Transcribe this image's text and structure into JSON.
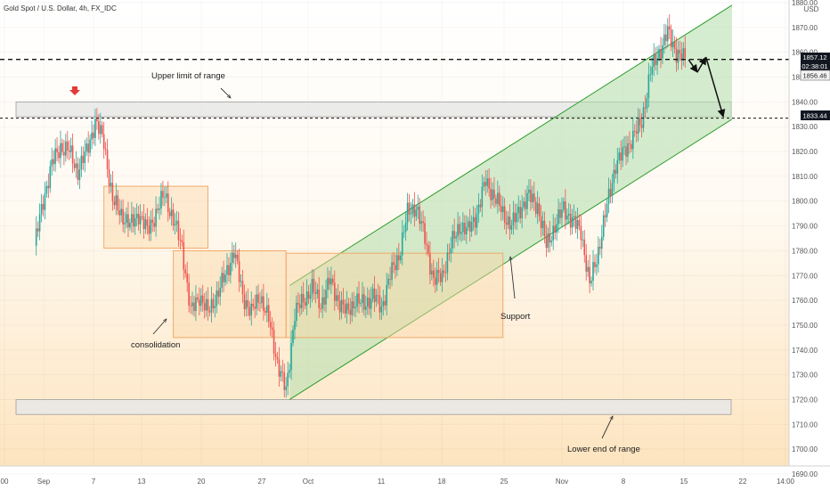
{
  "header": {
    "symbol_title": "Gold Spot / U.S. Dollar, 4h, FX_IDC",
    "currency": "USD"
  },
  "price_tags": {
    "current_price": "1857.12",
    "countdown": "02:38:01",
    "high_price": "1856.46",
    "level_price": "1833.44"
  },
  "colors": {
    "up_candle": "#26a69a",
    "down_candle": "#ef5350",
    "channel_line": "#2e9e2e",
    "channel_fill": "#b8e0b0",
    "box_orange": "#f0a35e",
    "range_gray": "#9e9e9e",
    "signal_arrow": "#e53935"
  },
  "annotations": {
    "upper_limit": "Upper limit of range",
    "consolidation": "consolidation",
    "support": "Support",
    "lower_end": "Lower end of range"
  },
  "chart_data": {
    "type": "candlestick",
    "title": "Gold Spot / U.S. Dollar, 4h, FX_IDC",
    "ylabel": "USD",
    "ylim": [
      1690,
      1880
    ],
    "y_ticks": [
      "1880.00",
      "1870.00",
      "1860.00",
      "1850.00",
      "1840.00",
      "1830.00",
      "1820.00",
      "1810.00",
      "1800.00",
      "1790.00",
      "1780.00",
      "1770.00",
      "1760.00",
      "1750.00",
      "1740.00",
      "1730.00",
      "1720.00",
      "1710.00",
      "1700.00",
      "1690.00"
    ],
    "x_ticks": [
      "00",
      "Sep",
      "7",
      "13",
      "20",
      "27",
      "Oct",
      "11",
      "18",
      "25",
      "Nov",
      "8",
      "15",
      "22",
      "14:00"
    ],
    "levels": {
      "upper_dashed": 1857.12,
      "lower_dashed": 1833.44
    },
    "upper_range_zone": [
      1834,
      1840
    ],
    "lower_range_zone": [
      1714,
      1720
    ],
    "channel": {
      "lower": [
        [
          "Sep 29",
          1720
        ],
        [
          "Nov 19",
          1833
        ]
      ],
      "upper": [
        [
          "Sep 29",
          1766
        ],
        [
          "Nov 19",
          1879
        ]
      ]
    },
    "consolidation_boxes": [
      {
        "from": "Sep 8",
        "to": "Sep 20",
        "low": 1781,
        "high": 1806
      },
      {
        "from": "Sep 16",
        "to": "Sep 29",
        "low": 1745,
        "high": 1780
      },
      {
        "from": "Sep 29",
        "to": "Oct 24",
        "low": 1745,
        "high": 1779
      }
    ],
    "close_path": [
      [
        "Aug 31",
        1782
      ],
      [
        "Sep 1",
        1800
      ],
      [
        "Sep 2",
        1815
      ],
      [
        "Sep 3",
        1822
      ],
      [
        "Sep 4",
        1820
      ],
      [
        "Sep 5",
        1812
      ],
      [
        "Sep 6",
        1820
      ],
      [
        "Sep 7",
        1832
      ],
      [
        "Sep 8",
        1824
      ],
      [
        "Sep 9",
        1800
      ],
      [
        "Sep 10",
        1795
      ],
      [
        "Sep 11",
        1790
      ],
      [
        "Sep 12",
        1795
      ],
      [
        "Sep 13",
        1788
      ],
      [
        "Sep 14",
        1795
      ],
      [
        "Sep 15",
        1803
      ],
      [
        "Sep 16",
        1792
      ],
      [
        "Sep 17",
        1782
      ],
      [
        "Sep 18",
        1755
      ],
      [
        "Sep 19",
        1762
      ],
      [
        "Sep 20",
        1755
      ],
      [
        "Sep 21",
        1762
      ],
      [
        "Sep 22",
        1770
      ],
      [
        "Sep 23",
        1780
      ],
      [
        "Sep 24",
        1762
      ],
      [
        "Sep 25",
        1755
      ],
      [
        "Sep 26",
        1762
      ],
      [
        "Sep 27",
        1752
      ],
      [
        "Sep 28",
        1735
      ],
      [
        "Sep 29",
        1723
      ],
      [
        "Sep 30",
        1755
      ],
      [
        "Oct 1",
        1760
      ],
      [
        "Oct 2",
        1765
      ],
      [
        "Oct 3",
        1758
      ],
      [
        "Oct 4",
        1768
      ],
      [
        "Oct 5",
        1760
      ],
      [
        "Oct 6",
        1755
      ],
      [
        "Oct 7",
        1760
      ],
      [
        "Oct 8",
        1758
      ],
      [
        "Oct 9",
        1762
      ],
      [
        "Oct 10",
        1757
      ],
      [
        "Oct 11",
        1770
      ],
      [
        "Oct 12",
        1778
      ],
      [
        "Oct 13",
        1795
      ],
      [
        "Oct 14",
        1798
      ],
      [
        "Oct 15",
        1785
      ],
      [
        "Oct 16",
        1768
      ],
      [
        "Oct 17",
        1770
      ],
      [
        "Oct 18",
        1782
      ],
      [
        "Oct 19",
        1790
      ],
      [
        "Oct 20",
        1788
      ],
      [
        "Oct 21",
        1795
      ],
      [
        "Oct 22",
        1808
      ],
      [
        "Oct 23",
        1802
      ],
      [
        "Oct 24",
        1795
      ],
      [
        "Oct 25",
        1790
      ],
      [
        "Oct 26",
        1797
      ],
      [
        "Oct 27",
        1802
      ],
      [
        "Oct 28",
        1798
      ],
      [
        "Oct 29",
        1782
      ],
      [
        "Oct 30",
        1790
      ],
      [
        "Oct 31",
        1797
      ],
      [
        "Nov 1",
        1792
      ],
      [
        "Nov 2",
        1788
      ],
      [
        "Nov 3",
        1766
      ],
      [
        "Nov 4",
        1780
      ],
      [
        "Nov 5",
        1798
      ],
      [
        "Nov 6",
        1815
      ],
      [
        "Nov 7",
        1820
      ],
      [
        "Nov 8",
        1826
      ],
      [
        "Nov 9",
        1832
      ],
      [
        "Nov 10",
        1852
      ],
      [
        "Nov 11",
        1860
      ],
      [
        "Nov 12",
        1868
      ],
      [
        "Nov 13",
        1860
      ],
      [
        "Nov 14",
        1857
      ]
    ],
    "projection": [
      [
        "Nov 14",
        1857
      ],
      [
        "Nov 15",
        1852
      ],
      [
        "Nov 16",
        1858
      ],
      [
        "Nov 18",
        1834
      ]
    ]
  }
}
